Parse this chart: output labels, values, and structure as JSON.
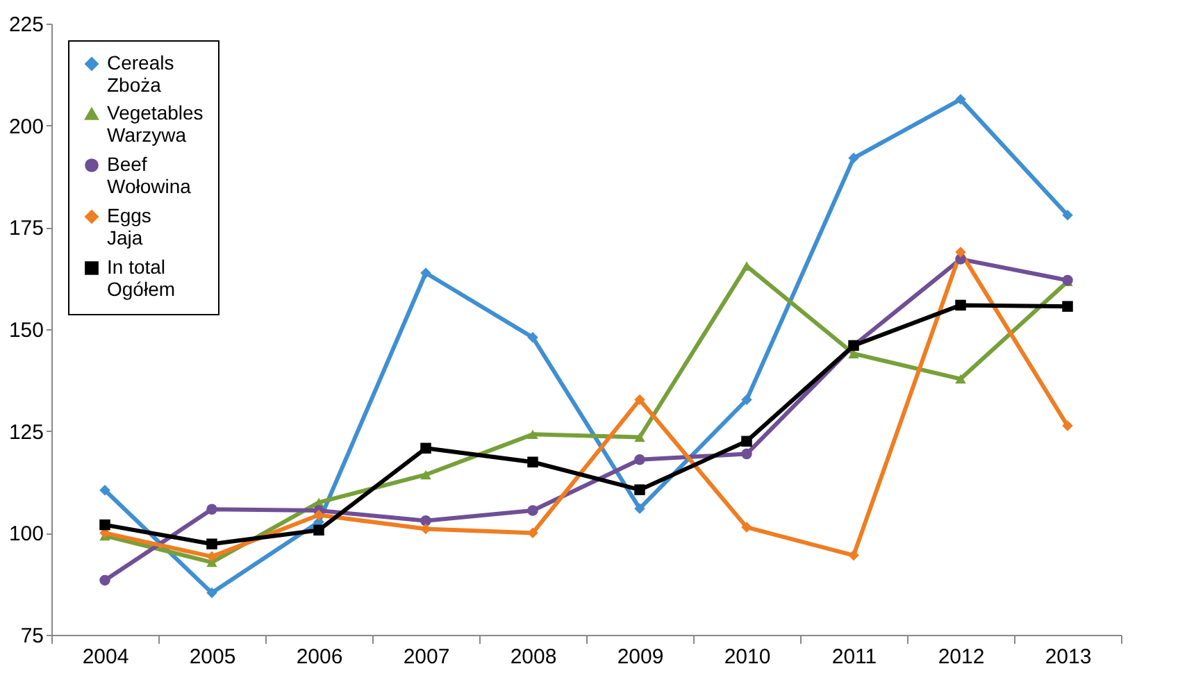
{
  "chart_data": {
    "type": "line",
    "categories": [
      "2004",
      "2005",
      "2006",
      "2007",
      "2008",
      "2009",
      "2010",
      "2011",
      "2012",
      "2013"
    ],
    "ylim": [
      75,
      225
    ],
    "yticks": [
      75,
      100,
      125,
      150,
      175,
      200,
      225
    ],
    "grid": false,
    "legend": "top left",
    "line_style": "solid",
    "series": [
      {
        "name": "Cereals\nZboża",
        "color": "#3f8fd2",
        "marker": "diamond",
        "values": [
          110.5,
          85.3,
          102.7,
          163.8,
          148,
          106,
          132.7,
          192,
          206.4,
          178
        ]
      },
      {
        "name": "Vegetables\nWarzywa",
        "color": "#77a03a",
        "marker": "triangle",
        "values": [
          99.3,
          92.8,
          107.5,
          114.3,
          124.2,
          123.5,
          165.5,
          144,
          137.8,
          161.7
        ]
      },
      {
        "name": "Beef\nWołowina",
        "color": "#6f4f96",
        "marker": "circle",
        "values": [
          88.4,
          105.8,
          105.5,
          103,
          105.5,
          118,
          119.4,
          146,
          167.2,
          162
        ]
      },
      {
        "name": "Eggs\nJaja",
        "color": "#ef7d22",
        "marker": "diamond",
        "values": [
          100,
          94.2,
          104.4,
          101,
          100,
          132.7,
          101.4,
          94.5,
          168.9,
          126.3
        ]
      },
      {
        "name": "In total\nOgółem",
        "color": "#000000",
        "marker": "square",
        "values": [
          102,
          97.3,
          100.7,
          120.8,
          117.4,
          110.6,
          122.5,
          146,
          155.9,
          155.6
        ]
      }
    ]
  }
}
